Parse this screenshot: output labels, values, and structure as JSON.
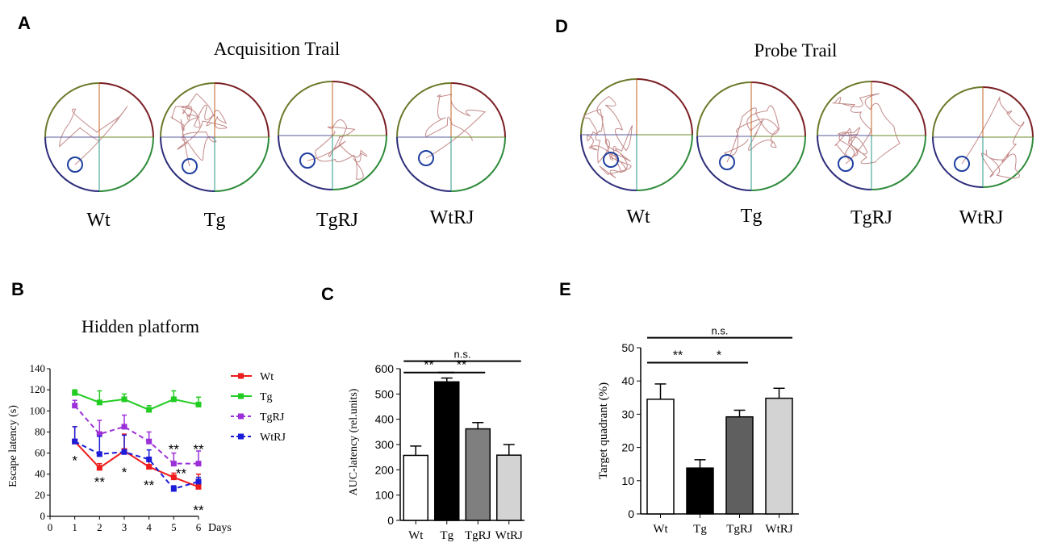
{
  "panels": {
    "A": {
      "letter": "A",
      "title": "Acquisition Trail",
      "groups": [
        "Wt",
        "Tg",
        "TgRJ",
        "WtRJ"
      ]
    },
    "D": {
      "letter": "D",
      "title": "Probe Trail",
      "groups": [
        "Wt",
        "Tg",
        "TgRJ",
        "WtRJ"
      ]
    },
    "B": {
      "letter": "B"
    },
    "C": {
      "letter": "C"
    },
    "E": {
      "letter": "E"
    }
  },
  "colors": {
    "quadrant_top_left": "#6b7a2a",
    "quadrant_top_right": "#7b1f24",
    "quadrant_bottom_left": "#2d2d7a",
    "quadrant_bottom_right": "#2e8b3a",
    "swim_path": "#c48a8a",
    "platform": "#1f3f9f"
  },
  "chart_data": [
    {
      "id": "B",
      "type": "line",
      "title": "Hidden platform",
      "xlabel": "Days",
      "ylabel": "Escape latency (s)",
      "xlim": [
        0,
        6
      ],
      "ylim": [
        0,
        140
      ],
      "xticks": [
        0,
        1,
        2,
        3,
        4,
        5,
        6
      ],
      "yticks": [
        0,
        20,
        40,
        60,
        80,
        100,
        120,
        140
      ],
      "x": [
        1,
        2,
        3,
        4,
        5,
        6
      ],
      "series": [
        {
          "name": "Wt",
          "color": "#ee1c1c",
          "dash": "solid",
          "values": [
            71,
            46,
            62,
            47,
            37,
            28
          ],
          "err": [
            14,
            4,
            16,
            8,
            4,
            12
          ]
        },
        {
          "name": "Tg",
          "color": "#22cc22",
          "dash": "solid",
          "values": [
            117,
            108,
            111,
            101,
            111,
            106
          ],
          "err": [
            3,
            11,
            5,
            4,
            8,
            7
          ]
        },
        {
          "name": "TgRJ",
          "color": "#9b30d9",
          "dash": "dashed",
          "values": [
            105,
            78,
            85,
            71,
            50,
            50
          ],
          "err": [
            5,
            13,
            11,
            9,
            10,
            12
          ]
        },
        {
          "name": "WtRJ",
          "color": "#1c1cd9",
          "dash": "dashed",
          "values": [
            71,
            59,
            61,
            54,
            26,
            33
          ],
          "err": [
            14,
            17,
            16,
            9,
            3,
            4
          ]
        }
      ],
      "annotations": [
        {
          "x": 1,
          "y": 53,
          "text": "*"
        },
        {
          "x": 2,
          "y": 33,
          "text": "**"
        },
        {
          "x": 3,
          "y": 42,
          "text": "*"
        },
        {
          "x": 4,
          "y": 30,
          "text": "**"
        },
        {
          "x": 5,
          "y": 64,
          "text": "**"
        },
        {
          "x": 5.3,
          "y": 41,
          "text": "**"
        },
        {
          "x": 6,
          "y": 64,
          "text": "**"
        },
        {
          "x": 6,
          "y": 6,
          "text": "**"
        }
      ]
    },
    {
      "id": "C",
      "type": "bar",
      "title": "",
      "xlabel": "",
      "ylabel": "AUC-latency (rel.units)",
      "ylim": [
        0,
        600
      ],
      "yticks": [
        0,
        100,
        200,
        300,
        400,
        500,
        600
      ],
      "categories": [
        "Wt",
        "Tg",
        "TgRJ",
        "WtRJ"
      ],
      "values": [
        257,
        548,
        362,
        258
      ],
      "err": [
        37,
        15,
        25,
        42
      ],
      "colors": [
        "#ffffff",
        "#000000",
        "#7f7f7f",
        "#d3d3d3"
      ],
      "significance": [
        {
          "from": 0,
          "to": 3,
          "y": 630,
          "text": "n.s."
        },
        {
          "from": 0,
          "to": 1,
          "y": 585,
          "text": "**"
        },
        {
          "from": 1,
          "to": 2,
          "y": 585,
          "text": "**"
        }
      ]
    },
    {
      "id": "E",
      "type": "bar",
      "title": "",
      "xlabel": "",
      "ylabel": "Target quadrant (%)",
      "ylim": [
        0,
        50
      ],
      "yticks": [
        0,
        10,
        20,
        30,
        40,
        50
      ],
      "categories": [
        "Wt",
        "Tg",
        "TgRJ",
        "WtRJ"
      ],
      "values": [
        34.5,
        13.8,
        29.2,
        34.8
      ],
      "err": [
        4.6,
        2.5,
        2.0,
        3.0
      ],
      "colors": [
        "#ffffff",
        "#000000",
        "#5f5f5f",
        "#d3d3d3"
      ],
      "significance": [
        {
          "from": 0,
          "to": 3,
          "y": 53,
          "text": "n.s."
        },
        {
          "from": 0,
          "to": 1,
          "y": 45.5,
          "text": "**"
        },
        {
          "from": 1,
          "to": 2,
          "y": 45.5,
          "text": "*"
        }
      ]
    }
  ]
}
